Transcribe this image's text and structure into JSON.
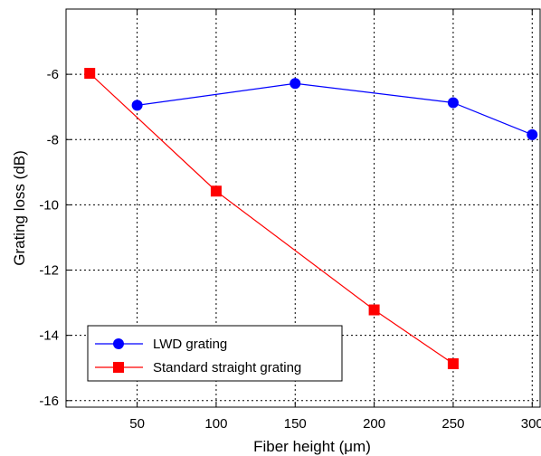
{
  "chart_data": {
    "type": "line",
    "xlabel": "Fiber height (μm)",
    "ylabel": "Grating loss (dB)",
    "xlim": [
      5,
      305
    ],
    "ylim": [
      -16.2,
      -4
    ],
    "xticks": [
      50,
      100,
      150,
      200,
      250,
      300
    ],
    "yticks": [
      -6,
      -8,
      -10,
      -12,
      -14,
      -16
    ],
    "xtick_labels": [
      "50",
      "100",
      "150",
      "200",
      "250",
      "300"
    ],
    "ytick_labels": [
      "-6",
      "-8",
      "-10",
      "-12",
      "-14",
      "-16"
    ],
    "grid": true,
    "legend_position": "bottom-left",
    "series": [
      {
        "name": "LWD grating",
        "color": "#0000ff",
        "marker": "circle",
        "x": [
          50,
          150,
          250,
          300
        ],
        "y": [
          -6.95,
          -6.28,
          -6.87,
          -7.85
        ]
      },
      {
        "name": "Standard straight grating",
        "color": "#ff0000",
        "marker": "square",
        "x": [
          20,
          100,
          200,
          250
        ],
        "y": [
          -5.97,
          -9.58,
          -13.22,
          -14.87
        ]
      }
    ]
  }
}
